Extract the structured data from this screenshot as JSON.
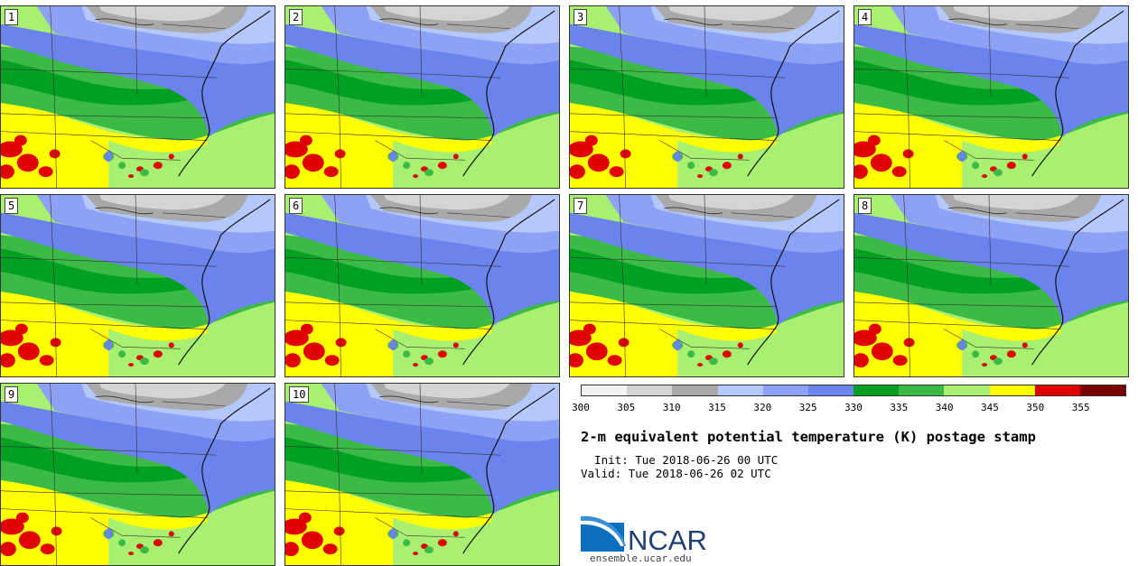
{
  "panels": [
    {
      "label": "1"
    },
    {
      "label": "2"
    },
    {
      "label": "3"
    },
    {
      "label": "4"
    },
    {
      "label": "5"
    },
    {
      "label": "6"
    },
    {
      "label": "7"
    },
    {
      "label": "8"
    },
    {
      "label": "9"
    },
    {
      "label": "10"
    }
  ],
  "colorbar": {
    "ticks": [
      "300",
      "305",
      "310",
      "315",
      "320",
      "325",
      "330",
      "335",
      "340",
      "345",
      "350",
      "355"
    ],
    "colors": [
      "#f2f2f2",
      "#d4d4d4",
      "#a9a9a9",
      "#b5c8fb",
      "#8da2f5",
      "#6b83ec",
      "#00a023",
      "#3cba46",
      "#a9ef72",
      "#ffff00",
      "#e00000",
      "#7a0000"
    ]
  },
  "title": "2-m equivalent potential temperature (K) postage stamp",
  "init": "  Init: Tue 2018-06-26 00 UTC",
  "valid": "Valid: Tue 2018-06-26 02 UTC",
  "logo_text": "NCAR",
  "url": "ensemble.ucar.edu"
}
